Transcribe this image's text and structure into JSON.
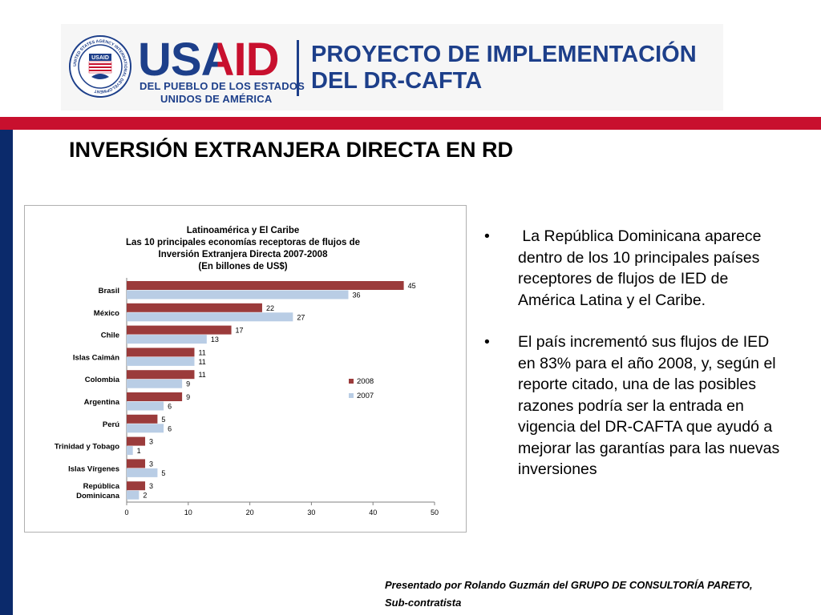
{
  "header": {
    "logo_word": "USAID",
    "logo_subtitle_line1": "DEL PUEBLO DE LOS ESTADOS",
    "logo_subtitle_line2": "UNIDOS DE AMÉRICA",
    "seal_text": "UNITED STATES AGENCY INTERNATIONAL DEVELOPMENT",
    "seal_label": "USAID",
    "project_line1": "PROYECTO DE IMPLEMENTACIÓN",
    "project_line2": "DEL DR-CAFTA"
  },
  "title": "INVERSIÓN EXTRANJERA DIRECTA EN RD",
  "chart_data": {
    "type": "bar",
    "orientation": "horizontal",
    "title_lines": [
      "Latinoamérica y El Caribe",
      "Las 10 principales economías receptoras de flujos de",
      "Inversión Extranjera Directa 2007-2008",
      "(En billones de US$)"
    ],
    "categories": [
      "Brasil",
      "México",
      "Chile",
      "Islas Caimán",
      "Colombia",
      "Argentina",
      "Perú",
      "Trinidad y Tobago",
      "Islas Vírgenes",
      "República Dominicana"
    ],
    "category_lines": [
      [
        "Brasil"
      ],
      [
        "México"
      ],
      [
        "Chile"
      ],
      [
        "Islas Caimán"
      ],
      [
        "Colombia"
      ],
      [
        "Argentina"
      ],
      [
        "Perú"
      ],
      [
        "Trinidad y Tobago"
      ],
      [
        "Islas Vírgenes"
      ],
      [
        "República",
        "Dominicana"
      ]
    ],
    "series": [
      {
        "name": "2008",
        "color": "#9b3b3b",
        "values": [
          45,
          22,
          17,
          11,
          11,
          9,
          5,
          3,
          3,
          3
        ]
      },
      {
        "name": "2007",
        "color": "#b9cde5",
        "values": [
          36,
          27,
          13,
          11,
          9,
          6,
          6,
          1,
          5,
          2
        ]
      }
    ],
    "xlim": [
      0,
      50
    ],
    "xticks": [
      0,
      10,
      20,
      30,
      40,
      50
    ],
    "legend_position": "right",
    "grid": false
  },
  "bullets": [
    " La República Dominicana aparece dentro de los 10 principales países receptores de flujos de IED de América Latina y el Caribe.",
    "El país incrementó sus flujos de IED en 83% para el año 2008, y, según el reporte citado, una de las posibles razones podría ser la entrada en vigencia del DR-CAFTA que ayudó a mejorar las garantías para las nuevas inversiones"
  ],
  "bullet_symbol": "•",
  "footer_line1": "Presentado por Rolando Guzmán del GRUPO DE CONSULTORÍA PARETO,",
  "footer_line2": "Sub-contratista",
  "colors": {
    "red_band": "#c8102e",
    "navy": "#0b2a6b",
    "usaid_blue": "#1d3f8a",
    "usaid_red": "#c8102e"
  }
}
